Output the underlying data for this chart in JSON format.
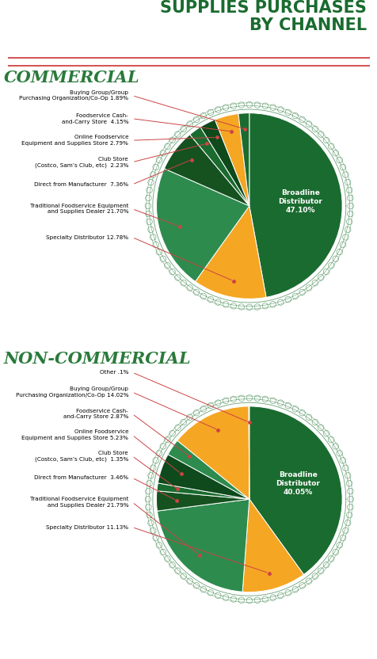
{
  "title": "SUPPLIES PURCHASES\nBY CHANNEL",
  "title_color": "#1a6b2f",
  "separator_color": "#cc3333",
  "bg_color": "#ffffff",
  "commercial_label": "COMMERCIAL",
  "commercial_label_color": "#2a7a3b",
  "commercial_slices": [
    {
      "label": "Broadline\nDistributor",
      "pct": 47.1,
      "color": "#1a6b2f"
    },
    {
      "label": "Specialty Distributor",
      "pct": 12.78,
      "color": "#f5a623"
    },
    {
      "label": "Traditional Foodservice Equipment\nand Supplies Dealer",
      "pct": 21.7,
      "color": "#2d8b4e"
    },
    {
      "label": "Direct from Manufacturer",
      "pct": 7.36,
      "color": "#155220"
    },
    {
      "label": "Club Store",
      "pct": 2.23,
      "color": "#1a6b2f"
    },
    {
      "label": "Online Foodservice\nEquipment and Supplies Store",
      "pct": 2.79,
      "color": "#0e4a1c"
    },
    {
      "label": "Foodservice Cash-\nand-Carry Store",
      "pct": 4.15,
      "color": "#f5a623"
    },
    {
      "label": "Buying Group/Group\nPurchasing Organization/Co-Op",
      "pct": 1.89,
      "color": "#1a6b2f"
    }
  ],
  "commercial_broadline_text": "Broadline\nDistributor\n47.10%",
  "noncommercial_label": "NON-COMMERCIAL",
  "noncommercial_label_color": "#2a7a3b",
  "noncommercial_slices": [
    {
      "label": "Broadline\nDistributor",
      "pct": 40.05,
      "color": "#1a6b2f"
    },
    {
      "label": "Specialty Distributor",
      "pct": 11.13,
      "color": "#f5a623"
    },
    {
      "label": "Traditional Foodservice Equipment\nand Supplies Dealer",
      "pct": 21.79,
      "color": "#2d8b4e"
    },
    {
      "label": "Direct from Manufacturer",
      "pct": 3.46,
      "color": "#155220"
    },
    {
      "label": "Club Store",
      "pct": 1.35,
      "color": "#1a6b2f"
    },
    {
      "label": "Online Foodservice\nEquipment and Supplies Store",
      "pct": 5.23,
      "color": "#0e4a1c"
    },
    {
      "label": "Foodservice Cash-\nand-Carry Store",
      "pct": 2.87,
      "color": "#2d8b4e"
    },
    {
      "label": "Buying Group/Group\nPurchasing Organization/Co-Op",
      "pct": 14.02,
      "color": "#f5a623"
    },
    {
      "label": "Other",
      "pct": 0.1,
      "color": "#1a6b2f"
    }
  ],
  "noncommercial_broadline_text": "Broadline\nDistributor\n40.05%",
  "edge_color": "#2a7a3b",
  "line_color": "#cc4444",
  "dot_color": "#cc4444",
  "com_annotations": [
    {
      "text": "Buying Group/Group\nPurchasing Organization/Co-Op",
      "pct": " 1.89%",
      "widx": 7
    },
    {
      "text": "Foodservice Cash-\nand-Carry Store",
      "pct": "  4.15%",
      "widx": 6
    },
    {
      "text": "Online Foodservice\nEquipment and Supplies Store",
      "pct": " 2.79%",
      "widx": 5
    },
    {
      "text": "Club Store\n(Costco, Sam’s Club, etc)",
      "pct": "  2.23%",
      "widx": 4
    },
    {
      "text": "Direct from Manufacturer",
      "pct": "  7.36%",
      "widx": 3
    },
    {
      "text": "Traditional Foodservice Equipment\nand Supplies Dealer",
      "pct": " 21.70%",
      "widx": 2
    },
    {
      "text": "Specialty Distributor",
      "pct": " 12.78%",
      "widx": 1
    }
  ],
  "nc_annotations": [
    {
      "text": "Other",
      "pct": " .1%",
      "widx": 8
    },
    {
      "text": "Buying Group/Group\nPurchasing Organization/Co-Op",
      "pct": " 14.02%",
      "widx": 7
    },
    {
      "text": "Foodservice Cash-\nand-Carry Store",
      "pct": " 2.87%",
      "widx": 6
    },
    {
      "text": "Online Foodservice\nEquipment and Supplies Store",
      "pct": " 5.23%",
      "widx": 5
    },
    {
      "text": "Club Store\n(Costco, Sam’s Club, etc)",
      "pct": "  1.35%",
      "widx": 4
    },
    {
      "text": "Direct from Manufacturer",
      "pct": "  3.46%",
      "widx": 3
    },
    {
      "text": "Traditional Foodservice Equipment\nand Supplies Dealer",
      "pct": " 21.79%",
      "widx": 2
    },
    {
      "text": "Specialty Distributor",
      "pct": " 11.13%",
      "widx": 1
    }
  ]
}
